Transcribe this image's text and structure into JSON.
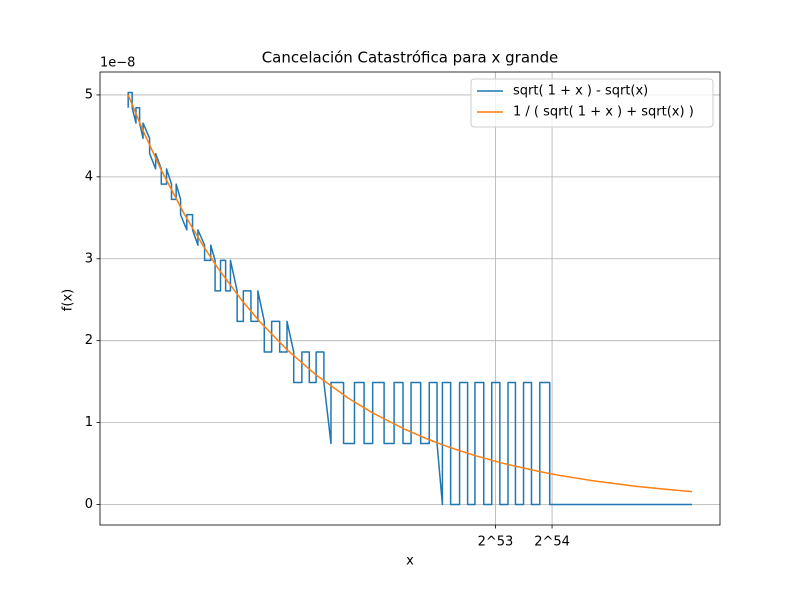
{
  "chart_data": {
    "type": "line",
    "title": "Cancelación Catastrófica para x grande",
    "x_label": "x",
    "y_label": "f(x)",
    "y_offset_label": "1e−8",
    "x_scale": "log",
    "grid": true,
    "legend": "upper right",
    "xlim": [
      70800000000000.0,
      1.41e+17
    ],
    "xticks": [
      {
        "value": 9007199254740992,
        "label": "2^53"
      },
      {
        "value": 18014398509481984,
        "label": "2^54"
      }
    ],
    "ylim": [
      -0.25,
      5.28
    ],
    "yticks": [
      0,
      1,
      2,
      3,
      4,
      5
    ],
    "series": [
      {
        "name": "sqrt( 1 + x ) - sqrt(x)",
        "color": "#1f77b4",
        "x": [
          100000000000000.0,
          100000000000000.0,
          105000000000000.0,
          105000000000000.0,
          110000000000000.0,
          110000000000000.0,
          115000000000000.0,
          115000000000000.0,
          120000000000000.0,
          120000000000000.0,
          130000000000000.0,
          130000000000000.0,
          140000000000000.0,
          140000000000000.0,
          150000000000000.0,
          150000000000000.0,
          160000000000000.0,
          160000000000000.0,
          170000000000000.0,
          170000000000000.0,
          180000000000000.0,
          180000000000000.0,
          190000000000000.0,
          190000000000000.0,
          205000000000000.0,
          205000000000000.0,
          220000000000000.0,
          220000000000000.0,
          235000000000000.0,
          235000000000000.0,
          255000000000000.0,
          255000000000000.0,
          275000000000000.0,
          275000000000000.0,
          290000000000000.0,
          290000000000000.0,
          310000000000000.0,
          310000000000000.0,
          330000000000000.0,
          330000000000000.0,
          350000000000000.0,
          350000000000000.0,
          380000000000000.0,
          380000000000000.0,
          410000000000000.0,
          410000000000000.0,
          450000000000000.0,
          450000000000000.0,
          490000000000000.0,
          490000000000000.0,
          530000000000000.0,
          530000000000000.0,
          580000000000000.0,
          580000000000000.0,
          640000000000000.0,
          640000000000000.0,
          700000000000000.0,
          700000000000000.0,
          760000000000000.0,
          760000000000000.0,
          840000000000000.0,
          840000000000000.0,
          920000000000000.0,
          920000000000000.0,
          1000000000000000.0,
          1000000000000000.0,
          1100000000000000.0,
          1100000000000000.0,
          1200000000000000.0,
          1200000000000000.0,
          1400000000000000.0,
          1400000000000000.0,
          1600000000000000.0,
          1600000000000000.0,
          1800000000000000.0,
          1800000000000000.0,
          2000000000000000.0,
          2000000000000000.0,
          2300000000000000.0,
          2300000000000000.0,
          2600000000000000.0,
          2600000000000000.0,
          2900000000000000.0,
          2900000000000000.0,
          3200000000000000.0,
          3200000000000000.0,
          3600000000000000.0,
          3600000000000000.0,
          4000000000000000.0,
          4000000000000000.0,
          4400000000000000.0,
          4400000000000000.0,
          4700000000000000.0,
          4700000000000000.0,
          5200000000000000.0,
          5200000000000000.0,
          5800000000000000.0,
          5800000000000000.0,
          6400000000000000.0,
          6400000000000000.0,
          7000000000000000.0,
          7000000000000000.0,
          7800000000000000.0,
          7800000000000000.0,
          8600000000000000.0,
          8600000000000000.0,
          9500000000000000.0,
          9500000000000000.0,
          1.05e+16,
          1.05e+16,
          1.15e+16,
          1.15e+16,
          1.27e+16,
          1.27e+16,
          1.4e+16,
          1.4e+16,
          1.55e+16,
          1.55e+16,
          1.75e+16,
          1.75e+16,
          1.9e+16,
          1e+17
        ],
        "values": [
          4.8429,
          5.0291,
          5.0291,
          4.8429,
          4.6566,
          4.8429,
          4.8429,
          4.6566,
          4.4703,
          4.6566,
          4.4703,
          4.2841,
          4.0978,
          4.2841,
          4.0978,
          3.9116,
          3.9116,
          4.0978,
          3.9116,
          3.7253,
          3.7253,
          3.9116,
          3.7253,
          3.539,
          3.3528,
          3.539,
          3.539,
          3.3528,
          3.1665,
          3.3528,
          3.1665,
          2.9802,
          2.9802,
          3.1665,
          2.9802,
          2.6077,
          2.6077,
          2.9802,
          2.9802,
          2.6077,
          2.6077,
          2.9802,
          2.6077,
          2.2352,
          2.2352,
          2.6077,
          2.6077,
          2.2352,
          2.2352,
          2.6077,
          2.2352,
          1.8626,
          1.8626,
          2.2352,
          2.2352,
          1.8626,
          1.8626,
          2.2352,
          1.8626,
          1.4901,
          1.4901,
          1.8626,
          1.8626,
          1.4901,
          1.4901,
          1.8626,
          1.8626,
          1.4901,
          0.7451,
          1.4901,
          1.4901,
          0.7451,
          0.7451,
          1.4901,
          1.4901,
          0.7451,
          0.7451,
          1.4901,
          1.4901,
          0.7451,
          0.7451,
          1.4901,
          1.4901,
          0.7451,
          0.7451,
          1.4901,
          1.4901,
          0.7451,
          0.7451,
          1.4901,
          1.4901,
          0.7451,
          0,
          1.4901,
          1.4901,
          0,
          0,
          1.4901,
          1.4901,
          0,
          0,
          1.4901,
          1.4901,
          0,
          0,
          1.4901,
          1.4901,
          0,
          0,
          1.4901,
          1.4901,
          0,
          0,
          1.4901,
          1.4901,
          0,
          0,
          1.4901,
          1.4901,
          0,
          0,
          0
        ]
      },
      {
        "name": "1 / ( sqrt( 1 + x ) + sqrt(x) )",
        "color": "#ff7f0e",
        "x": [
          100000000000000.0,
          120000000000000.0,
          150000000000000.0,
          200000000000000.0,
          250000000000000.0,
          300000000000000.0,
          400000000000000.0,
          500000000000000.0,
          700000000000000.0,
          1000000000000000.0,
          1500000000000000.0,
          2000000000000000.0,
          3000000000000000.0,
          4000000000000000.0,
          5000000000000000.0,
          7000000000000000.0,
          1e+16,
          1.5e+16,
          2e+16,
          3e+16,
          5e+16,
          7e+16,
          1e+17
        ],
        "values": [
          5.0,
          4.564,
          4.082,
          3.536,
          3.162,
          2.887,
          2.5,
          2.236,
          1.89,
          1.581,
          1.291,
          1.118,
          0.9129,
          0.7906,
          0.7071,
          0.5976,
          0.5,
          0.4082,
          0.3536,
          0.2887,
          0.2236,
          0.189,
          0.1581
        ]
      }
    ]
  }
}
